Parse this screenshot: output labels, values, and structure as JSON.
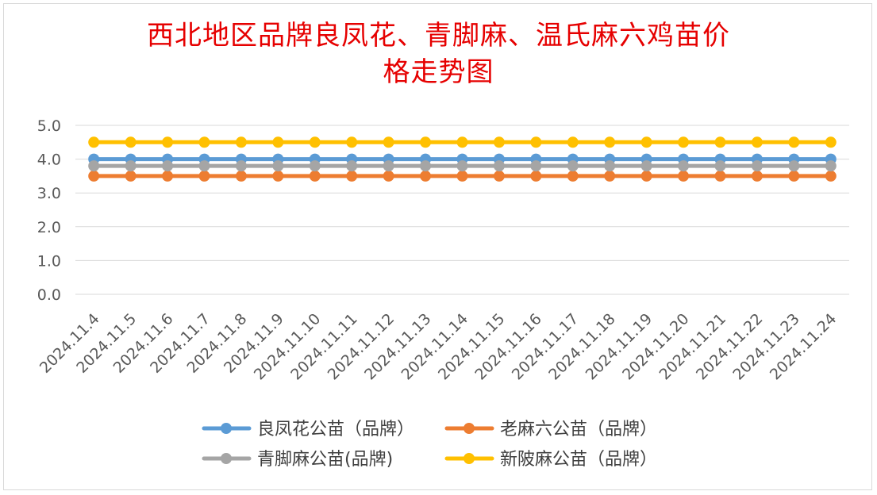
{
  "chart_data": {
    "type": "line",
    "title": "西北地区品牌良凤花、青脚麻、温氏麻六鸡苗价格走势图",
    "title_lines": [
      "西北地区品牌良凤花、青脚麻、温氏麻六鸡苗价",
      "格走势图"
    ],
    "x": [
      "2024.11.4",
      "2024.11.5",
      "2024.11.6",
      "2024.11.7",
      "2024.11.8",
      "2024.11.9",
      "2024.11.10",
      "2024.11.11",
      "2024.11.12",
      "2024.11.13",
      "2024.11.14",
      "2024.11.15",
      "2024.11.16",
      "2024.11.17",
      "2024.11.18",
      "2024.11.19",
      "2024.11.20",
      "2024.11.21",
      "2024.11.22",
      "2024.11.23",
      "2024.11.24"
    ],
    "ylim": [
      0,
      5
    ],
    "yticks": [
      "0.0",
      "1.0",
      "2.0",
      "3.0",
      "4.0",
      "5.0"
    ],
    "grid": true,
    "legend_position": "bottom",
    "series": [
      {
        "name": "良凤花公苗（品牌）",
        "color": "#5b9bd5",
        "values": [
          4.0,
          4.0,
          4.0,
          4.0,
          4.0,
          4.0,
          4.0,
          4.0,
          4.0,
          4.0,
          4.0,
          4.0,
          4.0,
          4.0,
          4.0,
          4.0,
          4.0,
          4.0,
          4.0,
          4.0,
          4.0
        ]
      },
      {
        "name": "老麻六公苗（品牌）",
        "color": "#ed7d31",
        "values": [
          3.5,
          3.5,
          3.5,
          3.5,
          3.5,
          3.5,
          3.5,
          3.5,
          3.5,
          3.5,
          3.5,
          3.5,
          3.5,
          3.5,
          3.5,
          3.5,
          3.5,
          3.5,
          3.5,
          3.5,
          3.5
        ]
      },
      {
        "name": "青脚麻公苗(品牌)",
        "color": "#a5a5a5",
        "values": [
          3.8,
          3.8,
          3.8,
          3.8,
          3.8,
          3.8,
          3.8,
          3.8,
          3.8,
          3.8,
          3.8,
          3.8,
          3.8,
          3.8,
          3.8,
          3.8,
          3.8,
          3.8,
          3.8,
          3.8,
          3.8
        ]
      },
      {
        "name": "新陂麻公苗（品牌）",
        "color": "#ffc000",
        "values": [
          4.5,
          4.5,
          4.5,
          4.5,
          4.5,
          4.5,
          4.5,
          4.5,
          4.5,
          4.5,
          4.5,
          4.5,
          4.5,
          4.5,
          4.5,
          4.5,
          4.5,
          4.5,
          4.5,
          4.5,
          4.5
        ]
      }
    ]
  }
}
